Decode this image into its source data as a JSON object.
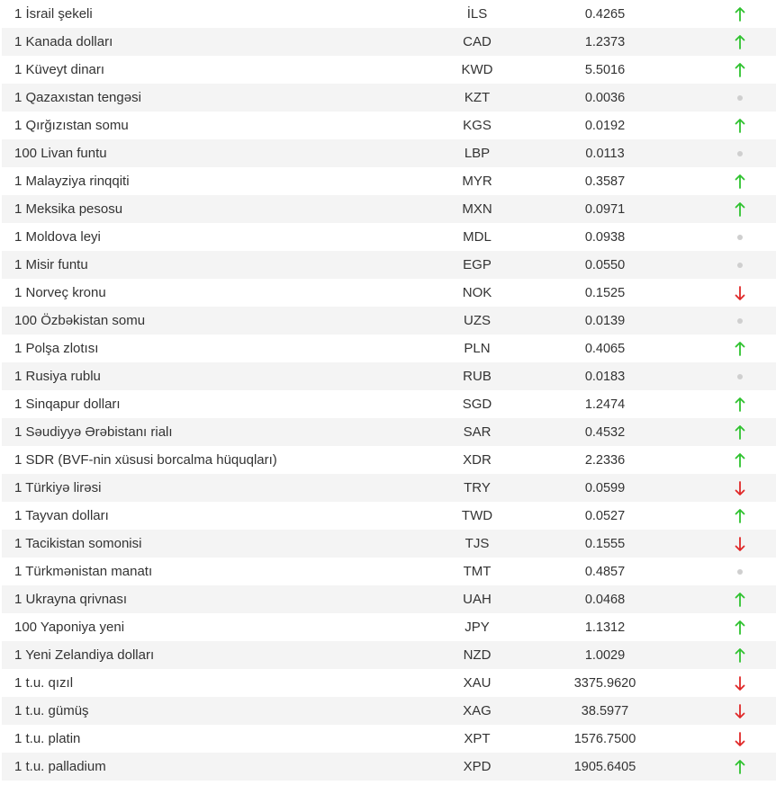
{
  "colors": {
    "up": "#2ec22e",
    "down": "#e02828",
    "neutral": "#cfcfcf",
    "row_alt": "#f4f4f4"
  },
  "trend_icons": {
    "up": "arrow-up-icon",
    "down": "arrow-down-icon",
    "neutral": "dot-icon"
  },
  "rates": [
    {
      "name": "1 İsrail şekeli",
      "code": "İLS",
      "rate": "0.4265",
      "trend": "up"
    },
    {
      "name": "1 Kanada dolları",
      "code": "CAD",
      "rate": "1.2373",
      "trend": "up"
    },
    {
      "name": "1 Küveyt dinarı",
      "code": "KWD",
      "rate": "5.5016",
      "trend": "up"
    },
    {
      "name": "1 Qazaxıstan tengəsi",
      "code": "KZT",
      "rate": "0.0036",
      "trend": "neutral"
    },
    {
      "name": "1 Qırğızıstan somu",
      "code": "KGS",
      "rate": "0.0192",
      "trend": "up"
    },
    {
      "name": "100 Livan funtu",
      "code": "LBP",
      "rate": "0.0113",
      "trend": "neutral"
    },
    {
      "name": "1 Malayziya rinqqiti",
      "code": "MYR",
      "rate": "0.3587",
      "trend": "up"
    },
    {
      "name": "1 Meksika pesosu",
      "code": "MXN",
      "rate": "0.0971",
      "trend": "up"
    },
    {
      "name": "1 Moldova leyi",
      "code": "MDL",
      "rate": "0.0938",
      "trend": "neutral"
    },
    {
      "name": "1 Misir funtu",
      "code": "EGP",
      "rate": "0.0550",
      "trend": "neutral"
    },
    {
      "name": "1 Norveç kronu",
      "code": "NOK",
      "rate": "0.1525",
      "trend": "down"
    },
    {
      "name": "100 Özbəkistan somu",
      "code": "UZS",
      "rate": "0.0139",
      "trend": "neutral"
    },
    {
      "name": "1 Polşa zlotısı",
      "code": "PLN",
      "rate": "0.4065",
      "trend": "up"
    },
    {
      "name": "1 Rusiya rublu",
      "code": "RUB",
      "rate": "0.0183",
      "trend": "neutral"
    },
    {
      "name": "1 Sinqapur dolları",
      "code": "SGD",
      "rate": "1.2474",
      "trend": "up"
    },
    {
      "name": "1 Səudiyyə Ərəbistanı rialı",
      "code": "SAR",
      "rate": "0.4532",
      "trend": "up"
    },
    {
      "name": "1 SDR (BVF-nin xüsusi borcalma hüquqları)",
      "code": "XDR",
      "rate": "2.2336",
      "trend": "up"
    },
    {
      "name": "1 Türkiyə lirəsi",
      "code": "TRY",
      "rate": "0.0599",
      "trend": "down"
    },
    {
      "name": "1 Tayvan dolları",
      "code": "TWD",
      "rate": "0.0527",
      "trend": "up"
    },
    {
      "name": "1 Tacikistan somonisi",
      "code": "TJS",
      "rate": "0.1555",
      "trend": "down"
    },
    {
      "name": "1 Türkmənistan manatı",
      "code": "TMT",
      "rate": "0.4857",
      "trend": "neutral"
    },
    {
      "name": "1 Ukrayna qrivnası",
      "code": "UAH",
      "rate": "0.0468",
      "trend": "up"
    },
    {
      "name": "100 Yaponiya yeni",
      "code": "JPY",
      "rate": "1.1312",
      "trend": "up"
    },
    {
      "name": "1 Yeni Zelandiya dolları",
      "code": "NZD",
      "rate": "1.0029",
      "trend": "up"
    },
    {
      "name": "1 t.u. qızıl",
      "code": "XAU",
      "rate": "3375.9620",
      "trend": "down"
    },
    {
      "name": "1 t.u. gümüş",
      "code": "XAG",
      "rate": "38.5977",
      "trend": "down"
    },
    {
      "name": "1 t.u. platin",
      "code": "XPT",
      "rate": "1576.7500",
      "trend": "down"
    },
    {
      "name": "1 t.u. palladium",
      "code": "XPD",
      "rate": "1905.6405",
      "trend": "up"
    }
  ]
}
